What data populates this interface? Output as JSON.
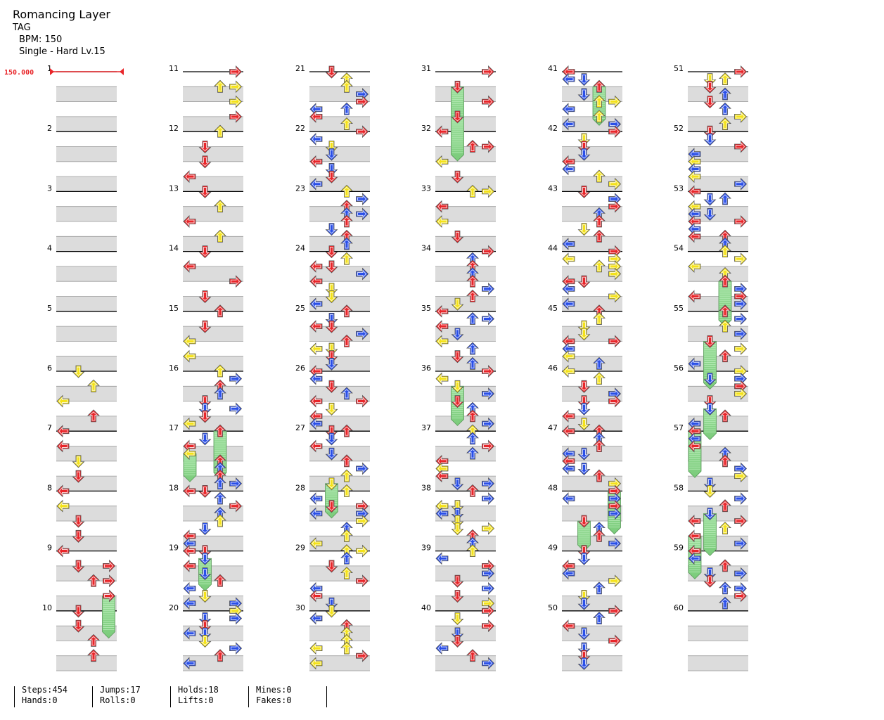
{
  "song": {
    "title": "Romancing Layer",
    "artist": "TAG",
    "bpm_label": "BPM: 150",
    "difficulty_label": "Single - Hard  Lv.15"
  },
  "bpm_marker": "150.000",
  "measure_numbers": [
    "1",
    "2",
    "3",
    "4",
    "5",
    "6",
    "7",
    "8",
    "9",
    "10",
    "11",
    "12",
    "13",
    "14",
    "15",
    "16",
    "17",
    "18",
    "19",
    "20",
    "21",
    "22",
    "23",
    "24",
    "25",
    "26",
    "27",
    "28",
    "29",
    "30",
    "31",
    "32",
    "33",
    "34",
    "35",
    "36",
    "37",
    "38",
    "39",
    "40",
    "41",
    "42",
    "43",
    "44",
    "45",
    "46",
    "47",
    "48",
    "49",
    "50",
    "51",
    "52",
    "53",
    "54",
    "55",
    "56",
    "57",
    "58",
    "59",
    "60"
  ],
  "stats": {
    "steps": "Steps:454",
    "jumps": "Jumps:17",
    "holds": "Holds:18",
    "mines": "Mines:0",
    "hands": "Hands:0",
    "rolls": "Rolls:0",
    "lifts": "Lifts:0",
    "fakes": "Fakes:0"
  },
  "colors": {
    "quarter": "#e8262a",
    "eighth": "#2a4fe8",
    "sixteenth": "#f4e21a",
    "hold": "#8ad68a",
    "band": "#dcdcdc"
  },
  "icons": [
    "arrow-left-icon",
    "arrow-down-icon",
    "arrow-up-icon",
    "arrow-right-icon"
  ]
}
